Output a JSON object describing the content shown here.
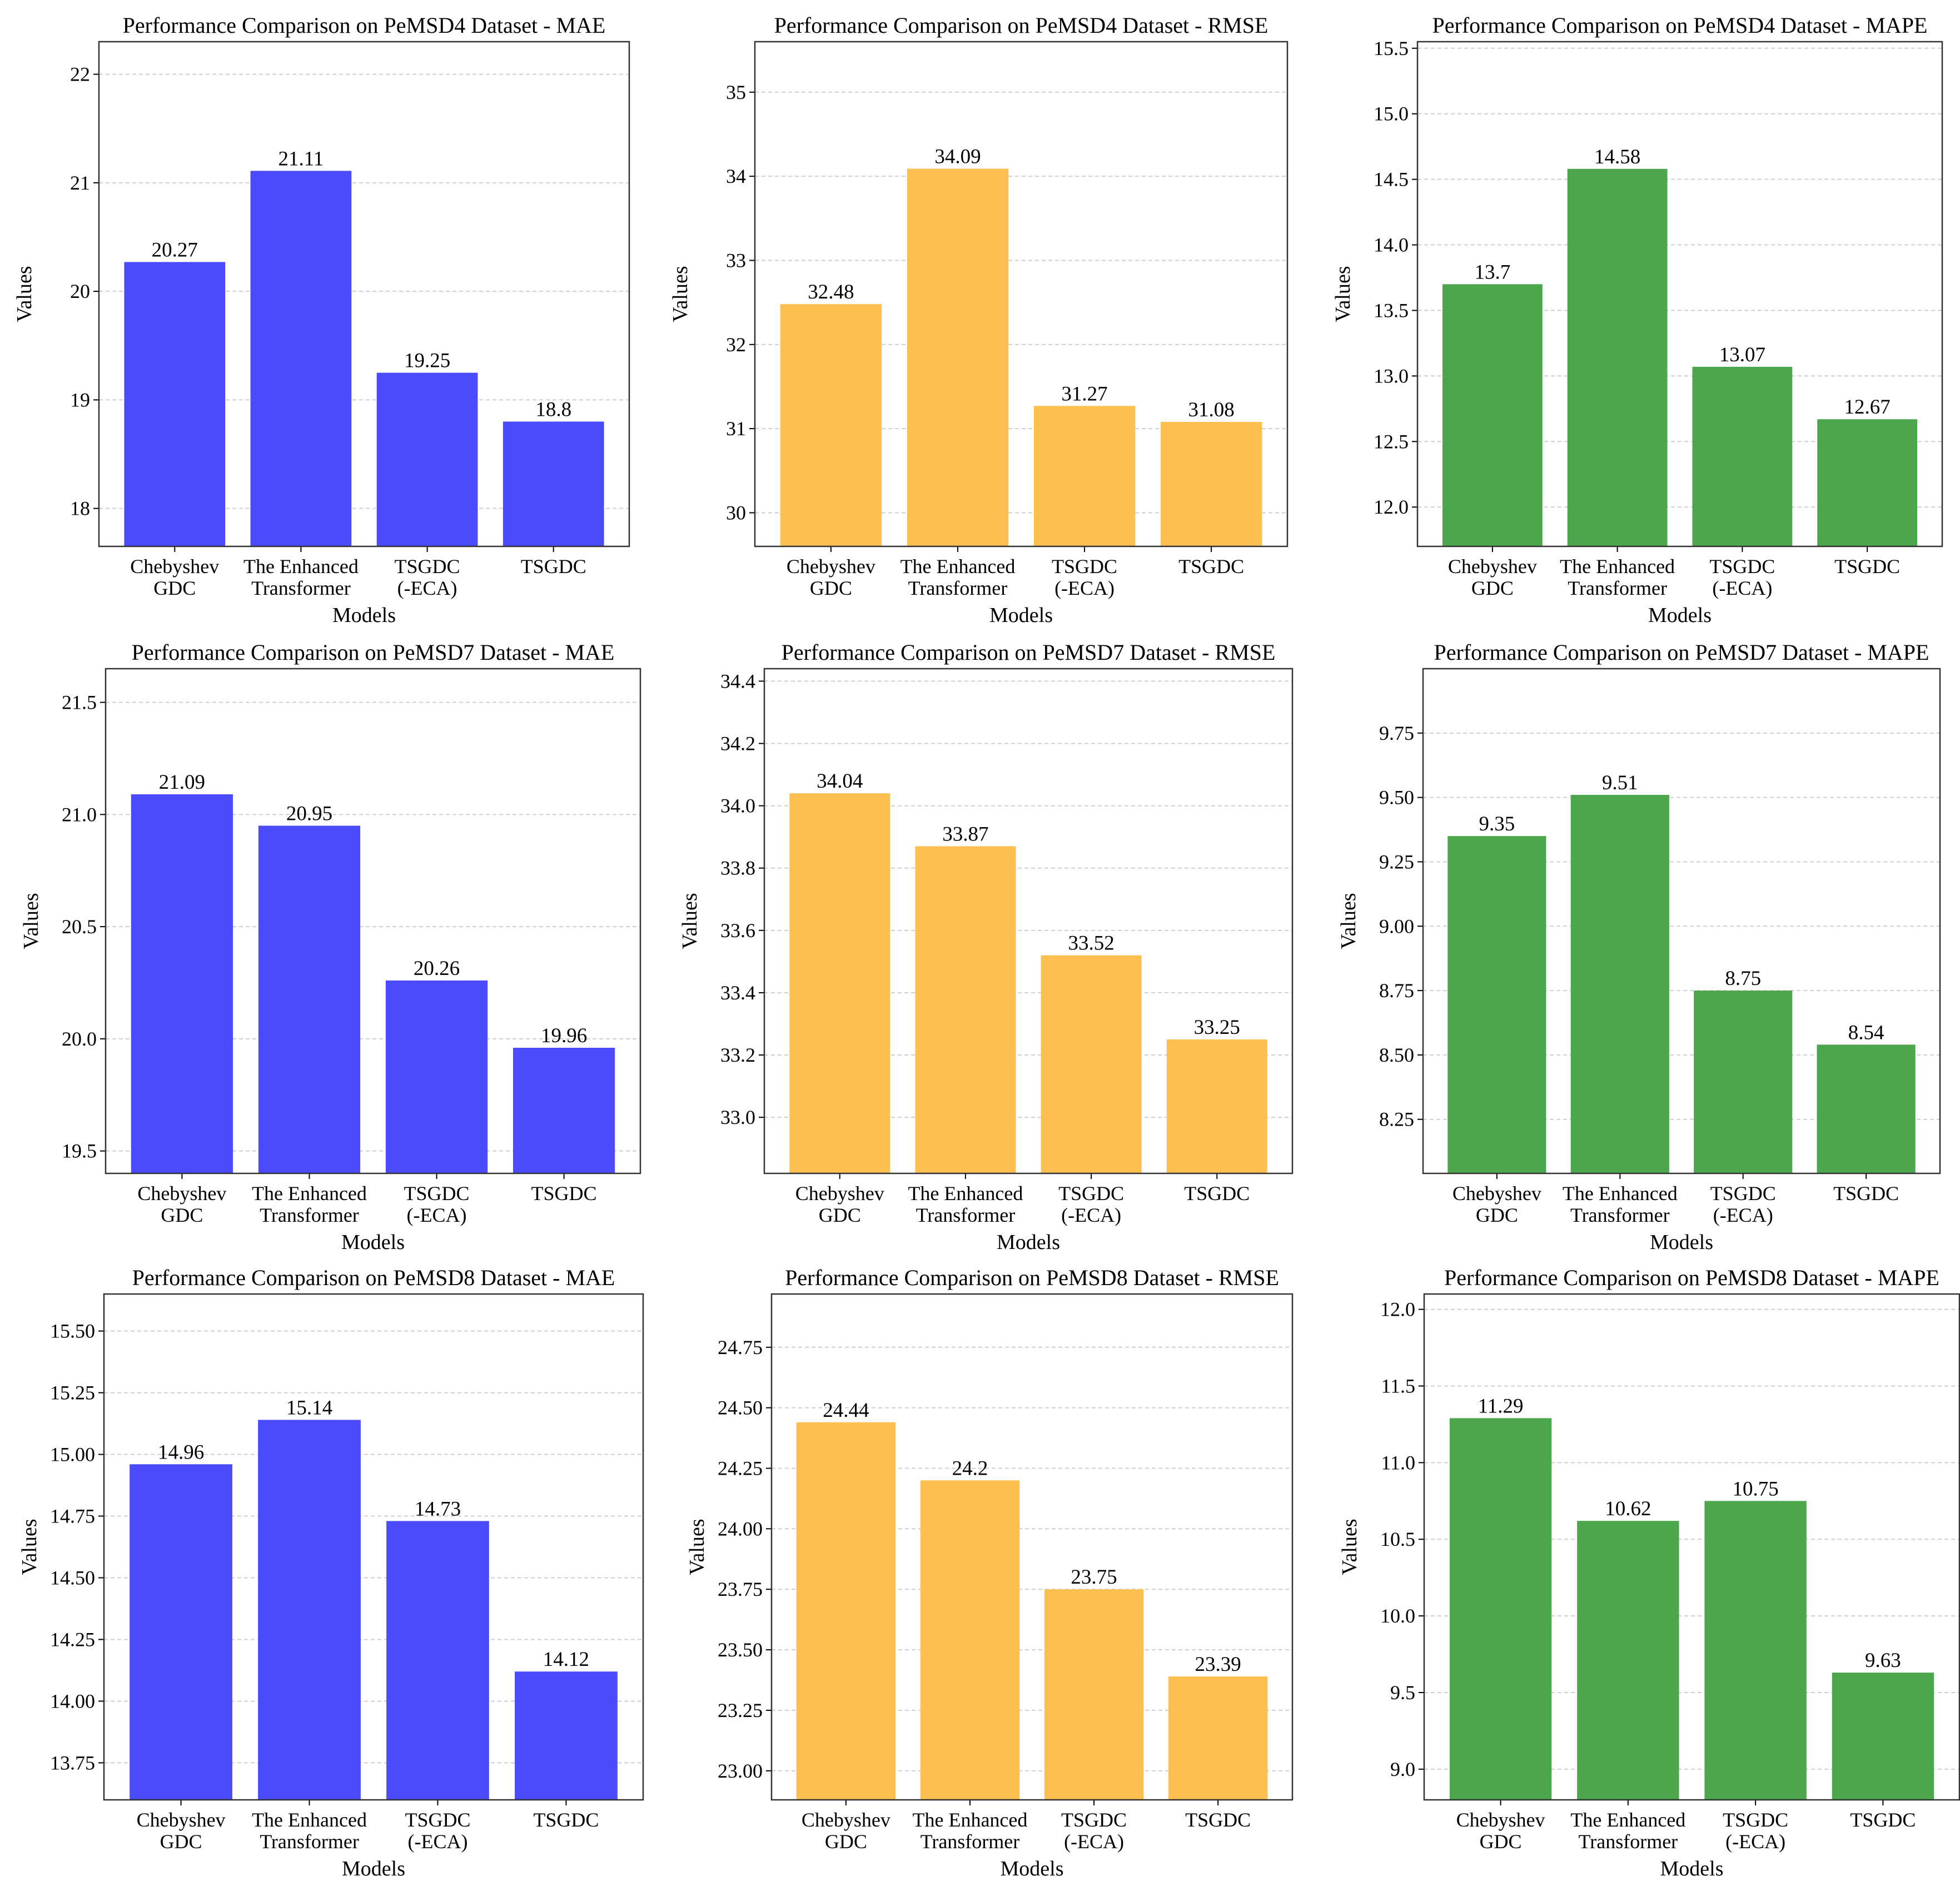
{
  "chart_data": [
    {
      "type": "bar",
      "title": "Performance Comparison on PeMSD4 Dataset - MAE",
      "xlabel": "Models",
      "ylabel": "Values",
      "categories": [
        [
          "Chebyshev",
          "GDC"
        ],
        [
          "The Enhanced",
          "Transformer"
        ],
        [
          "TSGDC",
          "(-ECA)"
        ],
        [
          "TSGDC"
        ]
      ],
      "values": [
        20.27,
        21.11,
        19.25,
        18.8
      ],
      "value_labels": [
        "20.27",
        "21.11",
        "19.25",
        "18.8"
      ],
      "ylim": [
        17.65,
        22.3
      ],
      "yticks": [
        18,
        19,
        20,
        21,
        22
      ],
      "ytick_labels": [
        "18",
        "19",
        "20",
        "21",
        "22"
      ],
      "color": "#4b4bfc",
      "grid": "y-dashed"
    },
    {
      "type": "bar",
      "title": "Performance Comparison on PeMSD4 Dataset - RMSE",
      "xlabel": "Models",
      "ylabel": "Values",
      "categories": [
        [
          "Chebyshev",
          "GDC"
        ],
        [
          "The Enhanced",
          "Transformer"
        ],
        [
          "TSGDC",
          "(-ECA)"
        ],
        [
          "TSGDC"
        ]
      ],
      "values": [
        32.48,
        34.09,
        31.27,
        31.08
      ],
      "value_labels": [
        "32.48",
        "34.09",
        "31.27",
        "31.08"
      ],
      "ylim": [
        29.6,
        35.6
      ],
      "yticks": [
        30,
        31,
        32,
        33,
        34,
        35
      ],
      "ytick_labels": [
        "30",
        "31",
        "32",
        "33",
        "34",
        "35"
      ],
      "color": "#fdbf4f",
      "grid": "y-dashed"
    },
    {
      "type": "bar",
      "title": "Performance Comparison on PeMSD4 Dataset - MAPE",
      "xlabel": "Models",
      "ylabel": "Values",
      "categories": [
        [
          "Chebyshev",
          "GDC"
        ],
        [
          "The Enhanced",
          "Transformer"
        ],
        [
          "TSGDC",
          "(-ECA)"
        ],
        [
          "TSGDC"
        ]
      ],
      "values": [
        13.7,
        14.58,
        13.07,
        12.67
      ],
      "value_labels": [
        "13.7",
        "14.58",
        "13.07",
        "12.67"
      ],
      "ylim": [
        11.7,
        15.55
      ],
      "yticks": [
        12.0,
        12.5,
        13.0,
        13.5,
        14.0,
        14.5,
        15.0,
        15.5
      ],
      "ytick_labels": [
        "12.0",
        "12.5",
        "13.0",
        "13.5",
        "14.0",
        "14.5",
        "15.0",
        "15.5"
      ],
      "color": "#4ca64c",
      "grid": "y-dashed"
    },
    {
      "type": "bar",
      "title": "Performance Comparison on PeMSD7 Dataset - MAE",
      "xlabel": "Models",
      "ylabel": "Values",
      "categories": [
        [
          "Chebyshev",
          "GDC"
        ],
        [
          "The Enhanced",
          "Transformer"
        ],
        [
          "TSGDC",
          "(-ECA)"
        ],
        [
          "TSGDC"
        ]
      ],
      "values": [
        21.09,
        20.95,
        20.26,
        19.96
      ],
      "value_labels": [
        "21.09",
        "20.95",
        "20.26",
        "19.96"
      ],
      "ylim": [
        19.4,
        21.65
      ],
      "yticks": [
        19.5,
        20.0,
        20.5,
        21.0,
        21.5
      ],
      "ytick_labels": [
        "19.5",
        "20.0",
        "20.5",
        "21.0",
        "21.5"
      ],
      "color": "#4b4bfc",
      "grid": "y-dashed"
    },
    {
      "type": "bar",
      "title": "Performance Comparison on PeMSD7 Dataset - RMSE",
      "xlabel": "Models",
      "ylabel": "Values",
      "categories": [
        [
          "Chebyshev",
          "GDC"
        ],
        [
          "The Enhanced",
          "Transformer"
        ],
        [
          "TSGDC",
          "(-ECA)"
        ],
        [
          "TSGDC"
        ]
      ],
      "values": [
        34.04,
        33.87,
        33.52,
        33.25
      ],
      "value_labels": [
        "34.04",
        "33.87",
        "33.52",
        "33.25"
      ],
      "ylim": [
        32.82,
        34.44
      ],
      "yticks": [
        33.0,
        33.2,
        33.4,
        33.6,
        33.8,
        34.0,
        34.2,
        34.4
      ],
      "ytick_labels": [
        "33.0",
        "33.2",
        "33.4",
        "33.6",
        "33.8",
        "34.0",
        "34.2",
        "34.4"
      ],
      "color": "#fdbf4f",
      "grid": "y-dashed"
    },
    {
      "type": "bar",
      "title": "Performance Comparison on PeMSD7 Dataset - MAPE",
      "xlabel": "Models",
      "ylabel": "Values",
      "categories": [
        [
          "Chebyshev",
          "GDC"
        ],
        [
          "The Enhanced",
          "Transformer"
        ],
        [
          "TSGDC",
          "(-ECA)"
        ],
        [
          "TSGDC"
        ]
      ],
      "values": [
        9.35,
        9.51,
        8.75,
        8.54
      ],
      "value_labels": [
        "9.35",
        "9.51",
        "8.75",
        "8.54"
      ],
      "ylim": [
        8.04,
        10.0
      ],
      "yticks": [
        8.25,
        8.5,
        8.75,
        9.0,
        9.25,
        9.5,
        9.75
      ],
      "ytick_labels": [
        "8.25",
        "8.50",
        "8.75",
        "9.00",
        "9.25",
        "9.50",
        "9.75"
      ],
      "color": "#4ca64c",
      "grid": "y-dashed"
    },
    {
      "type": "bar",
      "title": "Performance Comparison on PeMSD8 Dataset - MAE",
      "xlabel": "Models",
      "ylabel": "Values",
      "categories": [
        [
          "Chebyshev",
          "GDC"
        ],
        [
          "The Enhanced",
          "Transformer"
        ],
        [
          "TSGDC",
          "(-ECA)"
        ],
        [
          "TSGDC"
        ]
      ],
      "values": [
        14.96,
        15.14,
        14.73,
        14.12
      ],
      "value_labels": [
        "14.96",
        "15.14",
        "14.73",
        "14.12"
      ],
      "ylim": [
        13.6,
        15.65
      ],
      "yticks": [
        13.75,
        14.0,
        14.25,
        14.5,
        14.75,
        15.0,
        15.25,
        15.5
      ],
      "ytick_labels": [
        "13.75",
        "14.00",
        "14.25",
        "14.50",
        "14.75",
        "15.00",
        "15.25",
        "15.50"
      ],
      "color": "#4b4bfc",
      "grid": "y-dashed"
    },
    {
      "type": "bar",
      "title": "Performance Comparison on PeMSD8 Dataset - RMSE",
      "xlabel": "Models",
      "ylabel": "Values",
      "categories": [
        [
          "Chebyshev",
          "GDC"
        ],
        [
          "The Enhanced",
          "Transformer"
        ],
        [
          "TSGDC",
          "(-ECA)"
        ],
        [
          "TSGDC"
        ]
      ],
      "values": [
        24.44,
        24.2,
        23.75,
        23.39
      ],
      "value_labels": [
        "24.44",
        "24.2",
        "23.75",
        "23.39"
      ],
      "ylim": [
        22.88,
        24.97
      ],
      "yticks": [
        23.0,
        23.25,
        23.5,
        23.75,
        24.0,
        24.25,
        24.5,
        24.75
      ],
      "ytick_labels": [
        "23.00",
        "23.25",
        "23.50",
        "23.75",
        "24.00",
        "24.25",
        "24.50",
        "24.75"
      ],
      "color": "#fdbf4f",
      "grid": "y-dashed"
    },
    {
      "type": "bar",
      "title": "Performance Comparison on PeMSD8 Dataset - MAPE",
      "xlabel": "Models",
      "ylabel": "Values",
      "categories": [
        [
          "Chebyshev",
          "GDC"
        ],
        [
          "The Enhanced",
          "Transformer"
        ],
        [
          "TSGDC",
          "(-ECA)"
        ],
        [
          "TSGDC"
        ]
      ],
      "values": [
        11.29,
        10.62,
        10.75,
        9.63
      ],
      "value_labels": [
        "11.29",
        "10.62",
        "10.75",
        "9.63"
      ],
      "ylim": [
        8.8,
        12.1
      ],
      "yticks": [
        9.0,
        9.5,
        10.0,
        10.5,
        11.0,
        11.5,
        12.0
      ],
      "ytick_labels": [
        "9.0",
        "9.5",
        "10.0",
        "10.5",
        "11.0",
        "11.5",
        "12.0"
      ],
      "color": "#4ca64c",
      "grid": "y-dashed"
    }
  ]
}
